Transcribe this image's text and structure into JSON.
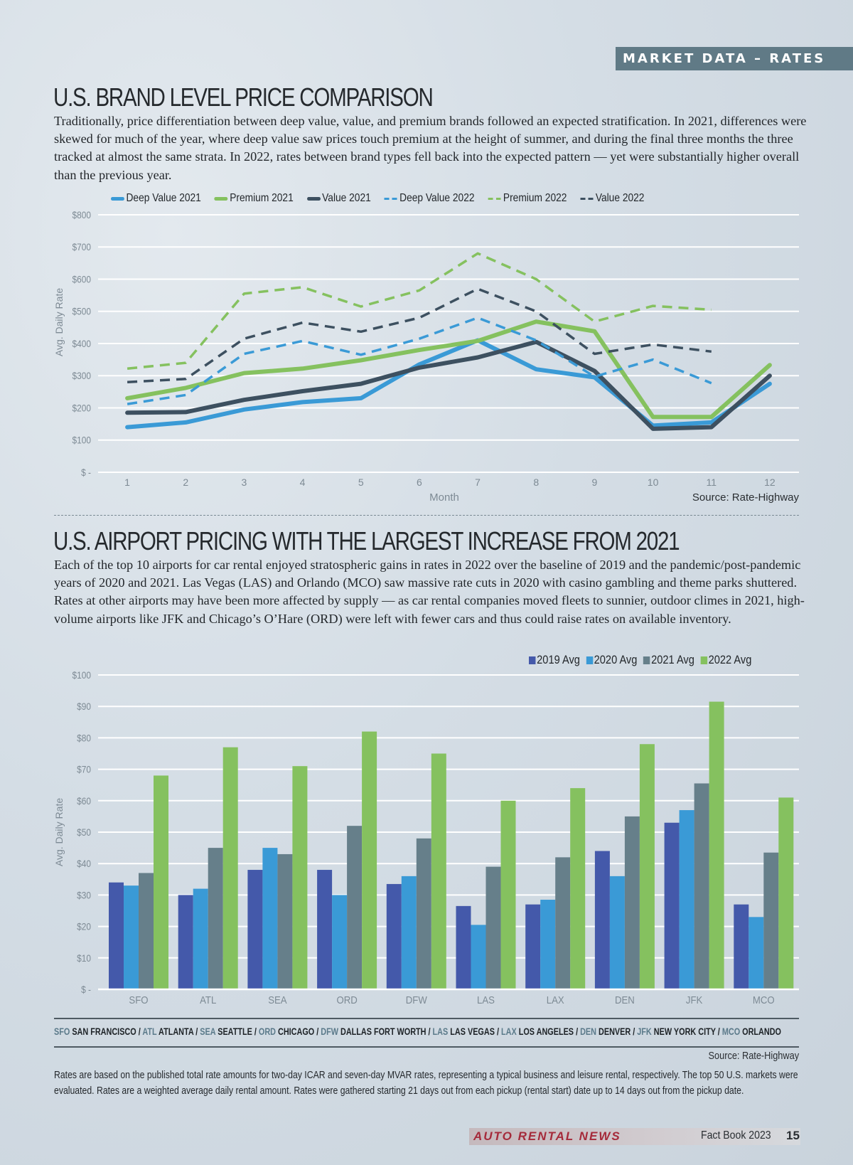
{
  "section_tag": "MARKET DATA – RATES",
  "section1": {
    "title": "U.S. BRAND LEVEL PRICE COMPARISON",
    "body": "Traditionally, price differentiation between deep value, value, and premium brands followed an expected stratification. In 2021, differences were skewed for much of the year, where deep value saw prices touch premium at the height of summer, and during the final three months the three tracked at almost the same strata. In 2022, rates between brand types fell back into the expected pattern — yet were substantially higher overall than the previous year.",
    "source": "Source: Rate-Highway"
  },
  "section2": {
    "title": "U.S. AIRPORT PRICING WITH THE LARGEST INCREASE FROM 2021",
    "body": "Each of the top 10 airports for car rental enjoyed stratospheric gains in rates in 2022 over the baseline of 2019 and the pandemic/post-pandemic years of 2020 and 2021. Las Vegas (LAS) and Orlando (MCO) saw massive rate cuts in 2020 with casino gambling and theme parks shuttered. Rates at other airports may have been more affected by supply — as car rental companies moved fleets to sunnier, outdoor climes in 2021, high-volume airports like JFK and Chicago’s O’Hare (ORD) were left with fewer cars and thus could raise rates on available inventory.",
    "abbreviations": [
      {
        "code": "SFO",
        "name": "SAN FRANCISCO"
      },
      {
        "code": "ATL",
        "name": "ATLANTA"
      },
      {
        "code": "SEA",
        "name": "SEATTLE"
      },
      {
        "code": "ORD",
        "name": "CHICAGO"
      },
      {
        "code": "DFW",
        "name": "DALLAS FORT WORTH"
      },
      {
        "code": "LAS",
        "name": "LAS VEGAS"
      },
      {
        "code": "LAX",
        "name": "LOS ANGELES"
      },
      {
        "code": "DEN",
        "name": "DENVER"
      },
      {
        "code": "JFK",
        "name": "NEW YORK CITY"
      },
      {
        "code": "MCO",
        "name": "ORLANDO"
      }
    ],
    "source": "Source: Rate-Highway",
    "note": "Rates are based on the published total rate amounts for two-day ICAR and seven-day MVAR rates, representing a typical business and leisure rental, respectively. The top 50 U.S. markets were evaluated. Rates are a weighted average daily rental amount. Rates were gathered starting 21 days out from each pickup (rental start) date up to 14 days out from the pickup date."
  },
  "footer": {
    "brand": "AUTO RENTAL NEWS",
    "publication": "Fact Book 2023",
    "page": "15"
  },
  "colors": {
    "deep_value": "#3a9ad6",
    "premium": "#85c15f",
    "value": "#3d5060",
    "bar2019": "#4459aa",
    "bar2020": "#3a9ad6",
    "bar2021": "#667f8a",
    "bar2022": "#85c15f",
    "tag_bg": "#607a86",
    "brand_red": "#a52a3a"
  },
  "chart_data": [
    {
      "type": "line",
      "title": "U.S. BRAND LEVEL PRICE COMPARISON",
      "xlabel": "Month",
      "ylabel": "Avg. Daily Rate",
      "x": [
        1,
        2,
        3,
        4,
        5,
        6,
        7,
        8,
        9,
        10,
        11,
        12
      ],
      "ylim": [
        0,
        800
      ],
      "yticks": [
        0,
        100,
        200,
        300,
        400,
        500,
        600,
        700,
        800
      ],
      "ytick_labels": [
        "$ -",
        "$100",
        "$200",
        "$300",
        "$400",
        "$500",
        "$600",
        "$700",
        "$800"
      ],
      "grid": true,
      "legend_position": "top",
      "series": [
        {
          "name": "Deep Value 2021",
          "style": "solid",
          "color": "#3a9ad6",
          "values": [
            140,
            155,
            195,
            218,
            230,
            335,
            410,
            320,
            295,
            145,
            155,
            275
          ]
        },
        {
          "name": "Premium 2021",
          "style": "solid",
          "color": "#85c15f",
          "values": [
            230,
            262,
            308,
            322,
            348,
            380,
            408,
            468,
            438,
            172,
            172,
            333
          ]
        },
        {
          "name": "Value 2021",
          "style": "solid",
          "color": "#3d5060",
          "values": [
            185,
            187,
            225,
            252,
            275,
            325,
            357,
            405,
            315,
            135,
            140,
            300
          ]
        },
        {
          "name": "Deep Value 2022",
          "style": "dashed",
          "color": "#3a9ad6",
          "values": [
            212,
            240,
            368,
            408,
            365,
            415,
            480,
            410,
            297,
            350,
            277,
            null
          ]
        },
        {
          "name": "Premium 2022",
          "style": "dashed",
          "color": "#85c15f",
          "values": [
            322,
            340,
            555,
            575,
            515,
            565,
            680,
            600,
            468,
            517,
            505,
            null
          ]
        },
        {
          "name": "Value 2022",
          "style": "dashed",
          "color": "#3d5060",
          "values": [
            280,
            290,
            415,
            465,
            437,
            480,
            570,
            500,
            368,
            397,
            375,
            null
          ]
        }
      ]
    },
    {
      "type": "bar",
      "title": "U.S. AIRPORT PRICING WITH THE LARGEST INCREASE FROM 2021",
      "xlabel": "",
      "ylabel": "Avg. Daily Rate",
      "categories": [
        "SFO",
        "ATL",
        "SEA",
        "ORD",
        "DFW",
        "LAS",
        "LAX",
        "DEN",
        "JFK",
        "MCO"
      ],
      "ylim": [
        0,
        100
      ],
      "yticks": [
        0,
        10,
        20,
        30,
        40,
        50,
        60,
        70,
        80,
        90,
        100
      ],
      "ytick_labels": [
        "$ -",
        "$10",
        "$20",
        "$30",
        "$40",
        "$50",
        "$60",
        "$70",
        "$80",
        "$90",
        "$100"
      ],
      "grid": true,
      "legend_position": "top-right",
      "series": [
        {
          "name": "2019 Avg",
          "color": "#4459aa",
          "values": [
            34,
            30,
            38,
            38,
            33.5,
            26.5,
            27,
            44,
            53,
            27
          ]
        },
        {
          "name": "2020 Avg",
          "color": "#3a9ad6",
          "values": [
            33,
            32,
            45,
            30,
            36,
            20.5,
            28.5,
            36,
            57,
            23
          ]
        },
        {
          "name": "2021 Avg",
          "color": "#667f8a",
          "values": [
            37,
            45,
            43,
            52,
            48,
            39,
            42,
            55,
            65.5,
            43.5
          ]
        },
        {
          "name": "2022 Avg",
          "color": "#85c15f",
          "values": [
            68,
            77,
            71,
            82,
            75,
            60,
            64,
            78,
            91.5,
            61
          ]
        }
      ]
    }
  ]
}
